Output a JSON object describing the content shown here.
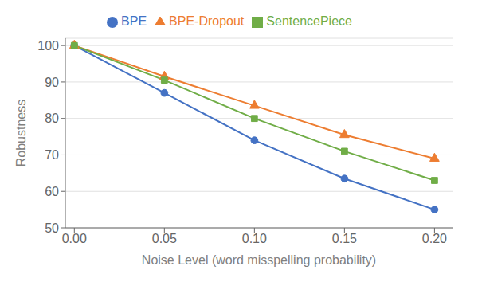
{
  "chart_data": {
    "type": "line",
    "xlabel": "Noise Level (word misspelling probability)",
    "ylabel": "Robustness",
    "x": [
      0.0,
      0.05,
      0.1,
      0.15,
      0.2
    ],
    "series": [
      {
        "name": "BPE",
        "color": "#4472C4",
        "marker": "circle",
        "values": [
          100,
          87,
          74,
          63.5,
          55
        ]
      },
      {
        "name": "BPE-Dropout",
        "color": "#ED7D31",
        "marker": "triangle",
        "values": [
          100,
          91.5,
          83.5,
          75.5,
          69
        ]
      },
      {
        "name": "SentencePiece",
        "color": "#70AD47",
        "marker": "square",
        "values": [
          100,
          90.5,
          80,
          71,
          63
        ]
      }
    ],
    "xlim": [
      -0.005,
      0.21
    ],
    "ylim": [
      50,
      102
    ],
    "xticks": [
      {
        "value": 0.0,
        "label": "0.00"
      },
      {
        "value": 0.05,
        "label": "0.05"
      },
      {
        "value": 0.1,
        "label": "0.10"
      },
      {
        "value": 0.15,
        "label": "0.15"
      },
      {
        "value": 0.2,
        "label": "0.20"
      }
    ],
    "yticks": [
      50,
      60,
      70,
      80,
      90,
      100
    ],
    "grid": "y",
    "legend": "top"
  }
}
